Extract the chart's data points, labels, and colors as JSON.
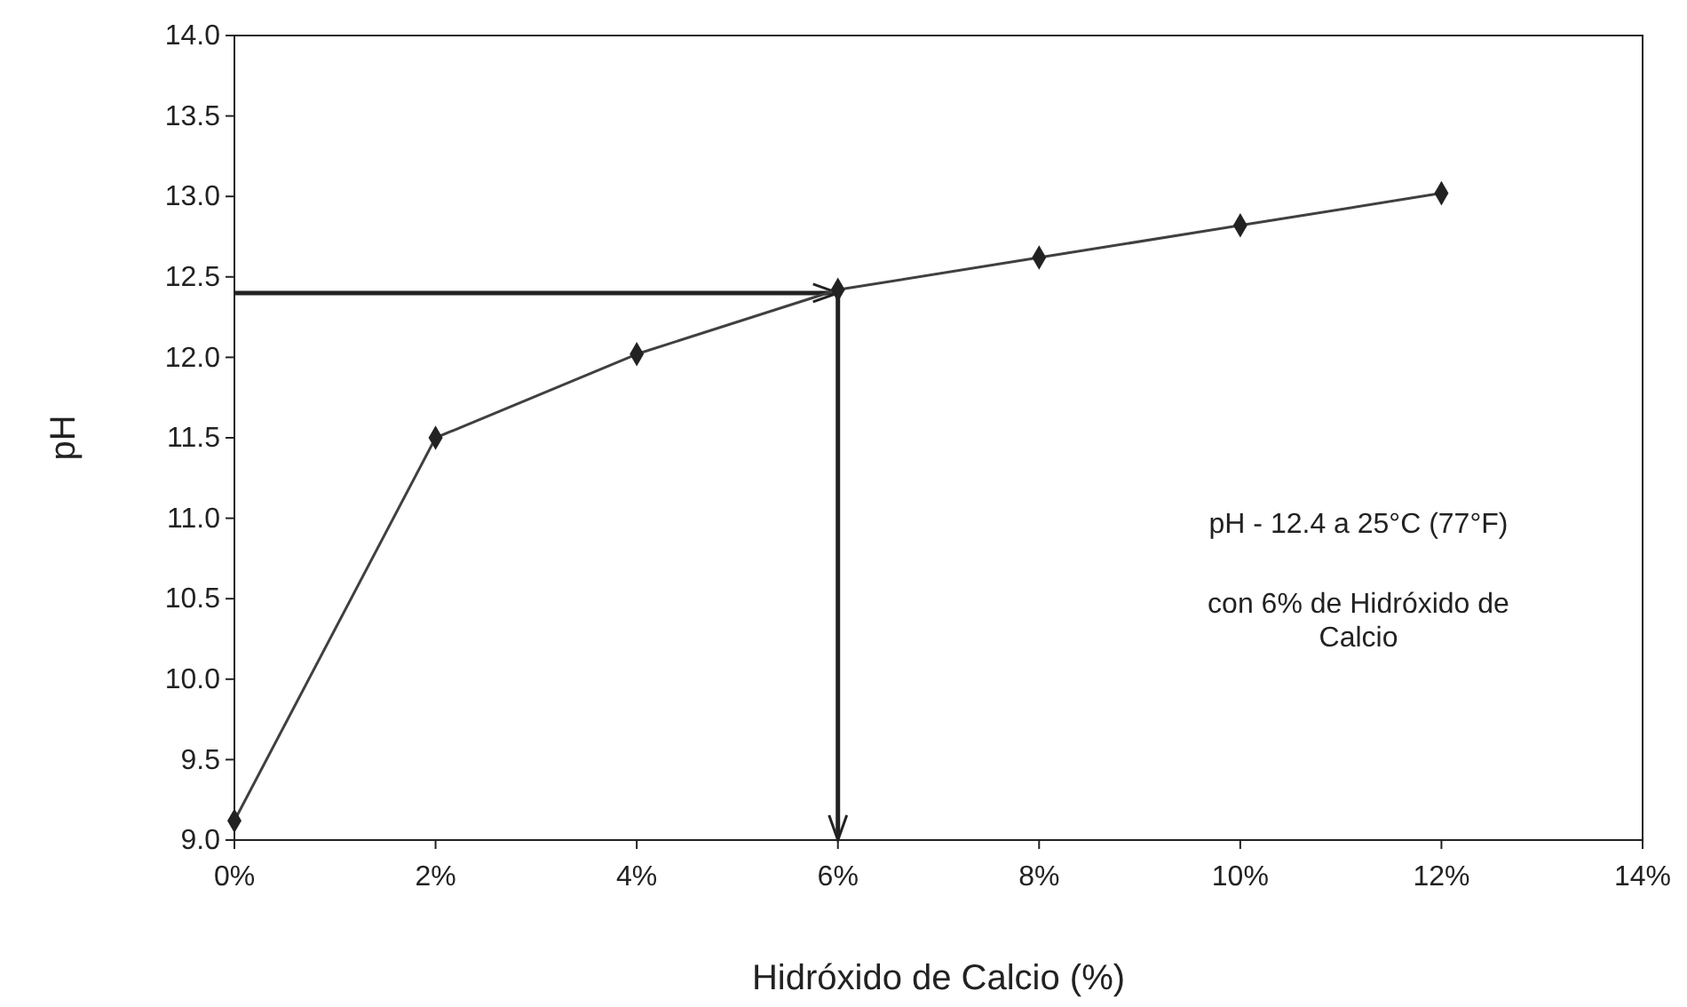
{
  "chart_data": {
    "type": "line",
    "xlabel": "Hidróxido de Calcio (%)",
    "ylabel": "pH",
    "x": [
      0,
      2,
      4,
      6,
      8,
      10,
      12
    ],
    "series": [
      {
        "color": "#404040",
        "values": [
          9.12,
          11.5,
          12.02,
          12.42,
          12.62,
          12.82,
          13.02
        ]
      }
    ],
    "xlim": [
      0,
      14
    ],
    "xticks": [
      {
        "value": 0,
        "label": "0%"
      },
      {
        "value": 2,
        "label": "2%"
      },
      {
        "value": 4,
        "label": "4%"
      },
      {
        "value": 6,
        "label": "6%"
      },
      {
        "value": 8,
        "label": "8%"
      },
      {
        "value": 10,
        "label": "10%"
      },
      {
        "value": 12,
        "label": "12%"
      },
      {
        "value": 14,
        "label": "14%"
      }
    ],
    "ylim": [
      9,
      14
    ],
    "yticks": [
      {
        "value": 9,
        "label": "9.0"
      },
      {
        "value": 9.5,
        "label": "9.5"
      },
      {
        "value": 10,
        "label": "10.0"
      },
      {
        "value": 10.5,
        "label": "10.5"
      },
      {
        "value": 11,
        "label": "11.0"
      },
      {
        "value": 11.5,
        "label": "11.5"
      },
      {
        "value": 12,
        "label": "12.0"
      },
      {
        "value": 12.5,
        "label": "12.5"
      },
      {
        "value": 13,
        "label": "13.0"
      },
      {
        "value": 13.5,
        "label": "13.5"
      },
      {
        "value": 14,
        "label": "14.0"
      }
    ],
    "annotations": [
      "pH - 12.4 a 25°C (77°F)",
      "con 6% de Hidróxido de Calcio"
    ],
    "ref_lines": [
      {
        "axis": "y",
        "value": 12.4,
        "color": "#222222"
      },
      {
        "axis": "x",
        "value": 6,
        "color": "#222222"
      }
    ],
    "grid": false,
    "marker": "diamond",
    "line_style": "solid"
  }
}
